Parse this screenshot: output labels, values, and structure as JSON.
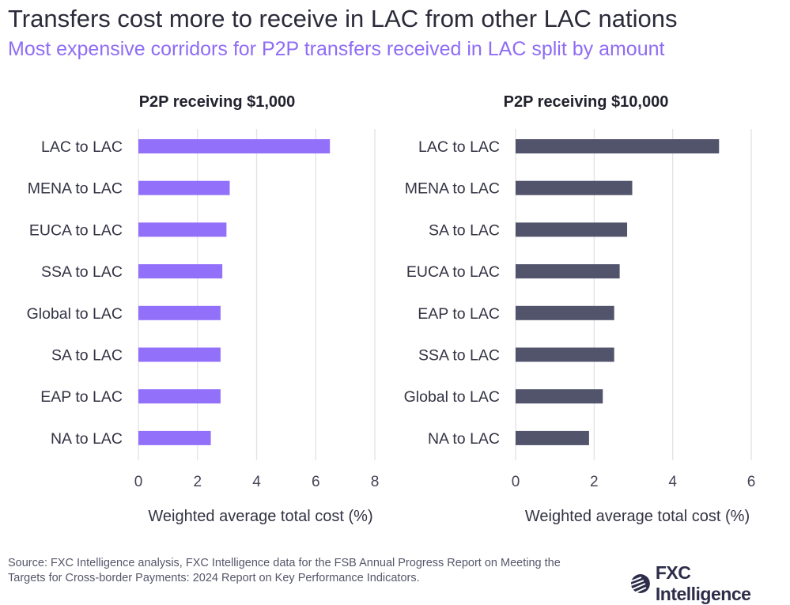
{
  "title": "Transfers cost more to receive in LAC from other LAC nations",
  "subtitle": "Most expensive corridors for P2P transfers received in LAC split by amount",
  "source": "Source: FXC Intelligence analysis, FXC Intelligence data for the FSB Annual Progress Report on Meeting the Targets for Cross-border Payments: 2024 Report on Key Performance Indicators.",
  "logo": {
    "text": "FXC Intelligence",
    "icon": "fxc-globe-icon"
  },
  "chart_data": [
    {
      "type": "bar",
      "orientation": "horizontal",
      "title": "P2P receiving $1,000",
      "xlabel": "Weighted average total cost (%)",
      "categories": [
        "LAC to LAC",
        "MENA to LAC",
        "EUCA to LAC",
        "SSA to LAC",
        "Global to LAC",
        "SA to LAC",
        "EAP to LAC",
        "NA to LAC"
      ],
      "values": [
        6.48,
        3.09,
        2.98,
        2.84,
        2.78,
        2.78,
        2.78,
        2.45
      ],
      "xlim": [
        0,
        8
      ],
      "ticks": [
        "0",
        "2",
        "4",
        "6",
        "8"
      ],
      "grid": true,
      "color": "#9370fa"
    },
    {
      "type": "bar",
      "orientation": "horizontal",
      "title": "P2P receiving $10,000",
      "xlabel": "Weighted average total cost (%)",
      "categories": [
        "LAC to LAC",
        "MENA to LAC",
        "SA to LAC",
        "EUCA to LAC",
        "EAP to LAC",
        "SSA to LAC",
        "Global to LAC",
        "NA to LAC"
      ],
      "values": [
        5.18,
        2.97,
        2.84,
        2.65,
        2.51,
        2.51,
        2.22,
        1.87
      ],
      "xlim": [
        0,
        6
      ],
      "ticks": [
        "0",
        "2",
        "4",
        "6"
      ],
      "grid": true,
      "color": "#52546c"
    }
  ]
}
